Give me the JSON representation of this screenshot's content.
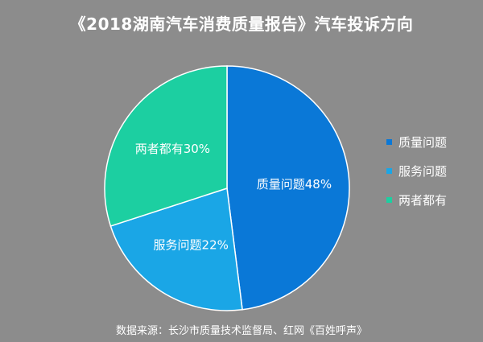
{
  "header": {
    "title": "《2018湖南汽车消费质量报告》汽车投诉方向"
  },
  "footer": {
    "source": "数据来源：长沙市质量技术监督局、红网《百姓呼声》"
  },
  "chart_data": {
    "type": "pie",
    "title": "《2018湖南汽车消费质量报告》汽车投诉方向",
    "categories": [
      "质量问题",
      "服务问题",
      "两者都有"
    ],
    "values": [
      48,
      22,
      30
    ],
    "unit": "%",
    "colors": [
      "#0a78d7",
      "#1aa6e6",
      "#1ccfa1"
    ],
    "slice_labels": [
      "质量问题48%",
      "服务问题22%",
      "两者都有30%"
    ],
    "legend_position": "right",
    "start_angle": "12 o'clock",
    "direction": "clockwise"
  }
}
